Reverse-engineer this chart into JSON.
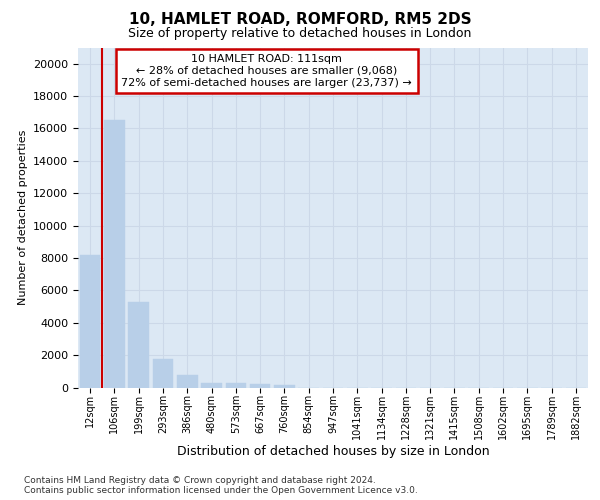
{
  "title1": "10, HAMLET ROAD, ROMFORD, RM5 2DS",
  "title2": "Size of property relative to detached houses in London",
  "xlabel": "Distribution of detached houses by size in London",
  "ylabel": "Number of detached properties",
  "categories": [
    "12sqm",
    "106sqm",
    "199sqm",
    "293sqm",
    "386sqm",
    "480sqm",
    "573sqm",
    "667sqm",
    "760sqm",
    "854sqm",
    "947sqm",
    "1041sqm",
    "1134sqm",
    "1228sqm",
    "1321sqm",
    "1415sqm",
    "1508sqm",
    "1602sqm",
    "1695sqm",
    "1789sqm",
    "1882sqm"
  ],
  "values": [
    8200,
    16500,
    5300,
    1750,
    750,
    300,
    250,
    200,
    150,
    0,
    0,
    0,
    0,
    0,
    0,
    0,
    0,
    0,
    0,
    0,
    0
  ],
  "bar_color": "#b8cfe8",
  "bar_edge_color": "#b8cfe8",
  "annotation_box_text": [
    "10 HAMLET ROAD: 111sqm",
    "← 28% of detached houses are smaller (9,068)",
    "72% of semi-detached houses are larger (23,737) →"
  ],
  "annotation_box_color": "#ffffff",
  "annotation_box_edgecolor": "#cc0000",
  "vline_color": "#cc0000",
  "grid_color": "#ccd8e8",
  "background_color": "#dce8f4",
  "ylim": [
    0,
    21000
  ],
  "yticks": [
    0,
    2000,
    4000,
    6000,
    8000,
    10000,
    12000,
    14000,
    16000,
    18000,
    20000
  ],
  "footnote": "Contains HM Land Registry data © Crown copyright and database right 2024.\nContains public sector information licensed under the Open Government Licence v3.0.",
  "title1_fontsize": 11,
  "title2_fontsize": 9,
  "ylabel_fontsize": 8,
  "xlabel_fontsize": 9,
  "ytick_fontsize": 8,
  "xtick_fontsize": 7,
  "footnote_fontsize": 6.5
}
